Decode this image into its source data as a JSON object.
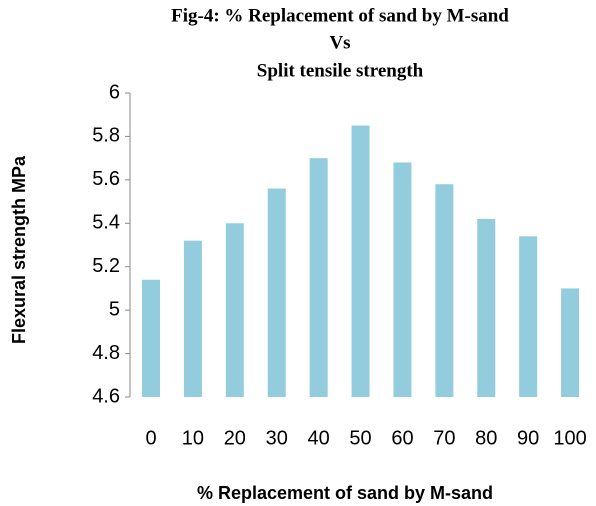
{
  "chart_data": {
    "type": "bar",
    "title": [
      "Fig-4: % Replacement of sand by M-sand",
      "Vs",
      "Split tensile strength"
    ],
    "x_label": "% Replacement of sand by M-sand",
    "y_label": "Flexural strength MPa",
    "categories": [
      "0",
      "10",
      "20",
      "30",
      "40",
      "50",
      "60",
      "70",
      "80",
      "90",
      "100"
    ],
    "values": [
      5.14,
      5.32,
      5.4,
      5.56,
      5.7,
      5.85,
      5.68,
      5.58,
      5.42,
      5.34,
      5.1
    ],
    "color": "#93cddd",
    "ylim": [
      4.6,
      6
    ],
    "yticks": [
      4.6,
      4.8,
      5,
      5.2,
      5.4,
      5.6,
      5.8,
      6
    ],
    "grid": false
  }
}
